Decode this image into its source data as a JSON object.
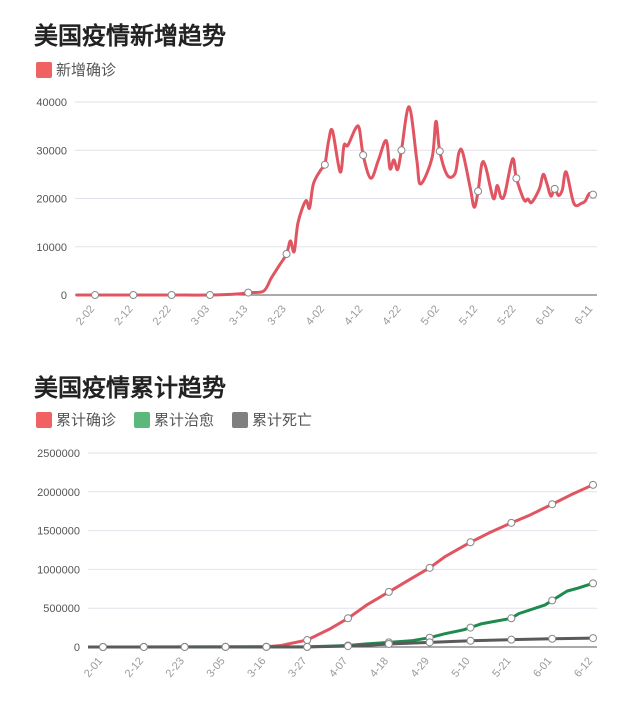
{
  "chart_data": [
    {
      "type": "line",
      "title": "美国疫情新增趋势",
      "legend": [
        "新增确诊"
      ],
      "colors": [
        "#e05561"
      ],
      "legend_color": "#f06262",
      "ylim": [
        0,
        40000
      ],
      "yticks": [
        0,
        10000,
        20000,
        30000,
        40000
      ],
      "xticks": [
        "2-02",
        "2-12",
        "2-22",
        "3-03",
        "3-13",
        "3-23",
        "4-02",
        "4-12",
        "4-22",
        "5-02",
        "5-12",
        "5-22",
        "6-01",
        "6-11"
      ],
      "series": [
        {
          "name": "新增确诊",
          "points": [
            [
              "1-28",
              0
            ],
            [
              "2-02",
              0
            ],
            [
              "2-12",
              0
            ],
            [
              "2-22",
              0
            ],
            [
              "3-03",
              0
            ],
            [
              "3-10",
              200
            ],
            [
              "3-13",
              500
            ],
            [
              "3-17",
              800
            ],
            [
              "3-19",
              3500
            ],
            [
              "3-21",
              6000
            ],
            [
              "3-23",
              8500
            ],
            [
              "3-24",
              11200
            ],
            [
              "3-25",
              9000
            ],
            [
              "3-26",
              15000
            ],
            [
              "3-28",
              19500
            ],
            [
              "3-29",
              18000
            ],
            [
              "3-30",
              23000
            ],
            [
              "4-01",
              26000
            ],
            [
              "4-02",
              27000
            ],
            [
              "4-03",
              32000
            ],
            [
              "4-04",
              34000
            ],
            [
              "4-06",
              25500
            ],
            [
              "4-07",
              31000
            ],
            [
              "4-08",
              31000
            ],
            [
              "4-10",
              34500
            ],
            [
              "4-11",
              34500
            ],
            [
              "4-12",
              29000
            ],
            [
              "4-14",
              24200
            ],
            [
              "4-16",
              28000
            ],
            [
              "4-18",
              32000
            ],
            [
              "4-19",
              26200
            ],
            [
              "4-20",
              28000
            ],
            [
              "4-21",
              26000
            ],
            [
              "4-22",
              30000
            ],
            [
              "4-24",
              39000
            ],
            [
              "4-26",
              28000
            ],
            [
              "4-27",
              23000
            ],
            [
              "4-30",
              28500
            ],
            [
              "5-01",
              36000
            ],
            [
              "5-02",
              29800
            ],
            [
              "5-04",
              24800
            ],
            [
              "5-06",
              25200
            ],
            [
              "5-07",
              29500
            ],
            [
              "5-08",
              29500
            ],
            [
              "5-10",
              22000
            ],
            [
              "5-11",
              18200
            ],
            [
              "5-12",
              21500
            ],
            [
              "5-13",
              27200
            ],
            [
              "5-14",
              26500
            ],
            [
              "5-16",
              20000
            ],
            [
              "5-17",
              22700
            ],
            [
              "5-18",
              20200
            ],
            [
              "5-19",
              21000
            ],
            [
              "5-21",
              28200
            ],
            [
              "5-22",
              24200
            ],
            [
              "5-24",
              19700
            ],
            [
              "5-25",
              19900
            ],
            [
              "5-26",
              19200
            ],
            [
              "5-28",
              22000
            ],
            [
              "5-29",
              25000
            ],
            [
              "5-30",
              23000
            ],
            [
              "5-31",
              20500
            ],
            [
              "6-01",
              22000
            ],
            [
              "6-02",
              20600
            ],
            [
              "6-03",
              21800
            ],
            [
              "6-04",
              25500
            ],
            [
              "6-06",
              19000
            ],
            [
              "6-08",
              19000
            ],
            [
              "6-09",
              19500
            ],
            [
              "6-10",
              21000
            ],
            [
              "6-11",
              20800
            ]
          ],
          "markers": [
            "2-02",
            "2-12",
            "2-22",
            "3-03",
            "3-13",
            "3-23",
            "4-02",
            "4-12",
            "4-22",
            "5-02",
            "5-12",
            "5-22",
            "6-01",
            "6-11"
          ]
        }
      ]
    },
    {
      "type": "line",
      "title": "美国疫情累计趋势",
      "legend": [
        "累计确诊",
        "累计治愈",
        "累计死亡"
      ],
      "colors": [
        "#e05561",
        "#1e8a4e",
        "#5a5a5a"
      ],
      "legend_colors": [
        "#f06262",
        "#5cb87a",
        "#7f7f7f"
      ],
      "ylim": [
        0,
        2500000
      ],
      "yticks": [
        0,
        500000,
        1000000,
        1500000,
        2000000,
        2500000
      ],
      "xticks": [
        "2-01",
        "2-12",
        "2-23",
        "3-05",
        "3-16",
        "3-27",
        "4-07",
        "4-18",
        "4-29",
        "5-10",
        "5-21",
        "6-01",
        "6-12"
      ],
      "series": [
        {
          "name": "累计确诊",
          "points": [
            [
              "1-28",
              0
            ],
            [
              "2-01",
              0
            ],
            [
              "3-16",
              4000
            ],
            [
              "3-20",
              20000
            ],
            [
              "3-27",
              90000
            ],
            [
              "4-02",
              230000
            ],
            [
              "4-07",
              370000
            ],
            [
              "4-12",
              540000
            ],
            [
              "4-18",
              710000
            ],
            [
              "4-24",
              880000
            ],
            [
              "4-29",
              1020000
            ],
            [
              "5-03",
              1160000
            ],
            [
              "5-10",
              1350000
            ],
            [
              "5-15",
              1470000
            ],
            [
              "5-21",
              1600000
            ],
            [
              "5-26",
              1700000
            ],
            [
              "6-01",
              1840000
            ],
            [
              "6-06",
              1960000
            ],
            [
              "6-12",
              2090000
            ]
          ]
        },
        {
          "name": "累计治愈",
          "points": [
            [
              "1-28",
              0
            ],
            [
              "3-27",
              1000
            ],
            [
              "4-07",
              20000
            ],
            [
              "4-12",
              40000
            ],
            [
              "4-18",
              60000
            ],
            [
              "4-24",
              80000
            ],
            [
              "4-29",
              120000
            ],
            [
              "5-03",
              170000
            ],
            [
              "5-08",
              220000
            ],
            [
              "5-10",
              250000
            ],
            [
              "5-13",
              300000
            ],
            [
              "5-21",
              370000
            ],
            [
              "5-23",
              430000
            ],
            [
              "5-30",
              540000
            ],
            [
              "6-01",
              600000
            ],
            [
              "6-05",
              720000
            ],
            [
              "6-08",
              760000
            ],
            [
              "6-12",
              820000
            ]
          ]
        },
        {
          "name": "累计死亡",
          "points": [
            [
              "1-28",
              0
            ],
            [
              "3-27",
              1500
            ],
            [
              "4-07",
              12000
            ],
            [
              "4-18",
              38000
            ],
            [
              "4-29",
              60000
            ],
            [
              "5-10",
              80000
            ],
            [
              "5-21",
              95000
            ],
            [
              "6-01",
              106000
            ],
            [
              "6-12",
              115000
            ]
          ]
        }
      ],
      "markers": [
        "2-01",
        "2-12",
        "2-23",
        "3-05",
        "3-16",
        "3-27",
        "4-07",
        "4-18",
        "4-29",
        "5-10",
        "5-21",
        "6-01",
        "6-12"
      ]
    }
  ]
}
